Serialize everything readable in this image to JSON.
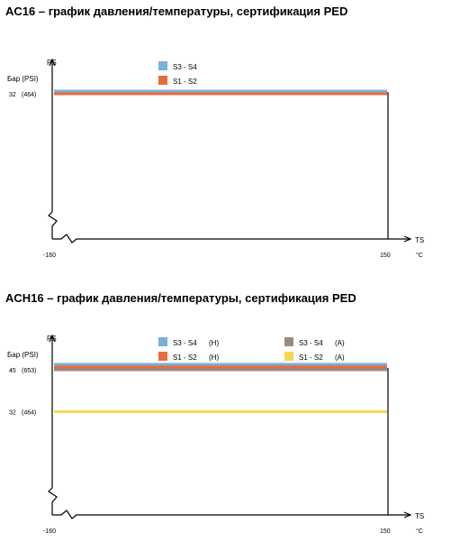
{
  "chart_data": [
    {
      "type": "line",
      "title": "AC16 – график давления/температуры, сертификация PED",
      "ylabel": "PS",
      "y_unit": "Бар (PSI)",
      "xlabel": "TS",
      "x_unit": "°C",
      "xlim": [
        -160,
        150
      ],
      "x_ticks": [
        "-160",
        "150"
      ],
      "y_ticks": [
        {
          "value": 32,
          "label": "32  (464)"
        }
      ],
      "ylim": [
        0,
        34
      ],
      "grid": false,
      "legend_position": "top",
      "series": [
        {
          "name": "S3 - S4",
          "color": "#7aaedb",
          "x": [
            -160,
            150
          ],
          "y": [
            32,
            32
          ]
        },
        {
          "name": "S1 - S2",
          "color": "#ea6a3a",
          "x": [
            -160,
            150
          ],
          "y": [
            32,
            32
          ]
        }
      ]
    },
    {
      "type": "line",
      "title": "ACH16 – график давления/температуры, сертификация PED",
      "ylabel": "PS",
      "y_unit": "Бар (PSI)",
      "xlabel": "TS",
      "x_unit": "°C",
      "xlim": [
        -160,
        150
      ],
      "x_ticks": [
        "-160",
        "150"
      ],
      "y_ticks": [
        {
          "value": 45,
          "label": "45  (653)"
        },
        {
          "value": 32,
          "label": "32  (464)"
        }
      ],
      "ylim": [
        0,
        47
      ],
      "grid": false,
      "legend_position": "top",
      "series": [
        {
          "name": "S3 - S4",
          "tag": "(H)",
          "color": "#7aaedb",
          "x": [
            -160,
            150
          ],
          "y": [
            45,
            45
          ]
        },
        {
          "name": "S1 - S2",
          "tag": "(H)",
          "color": "#ea6a3a",
          "x": [
            -160,
            150
          ],
          "y": [
            45,
            45
          ]
        },
        {
          "name": "S3 - S4",
          "tag": "(A)",
          "color": "#9a8a82",
          "x": [
            -160,
            150
          ],
          "y": [
            45,
            45
          ]
        },
        {
          "name": "S1 - S2",
          "tag": "(A)",
          "color": "#f5d84a",
          "x": [
            -160,
            150
          ],
          "y": [
            32,
            32
          ]
        }
      ]
    }
  ]
}
